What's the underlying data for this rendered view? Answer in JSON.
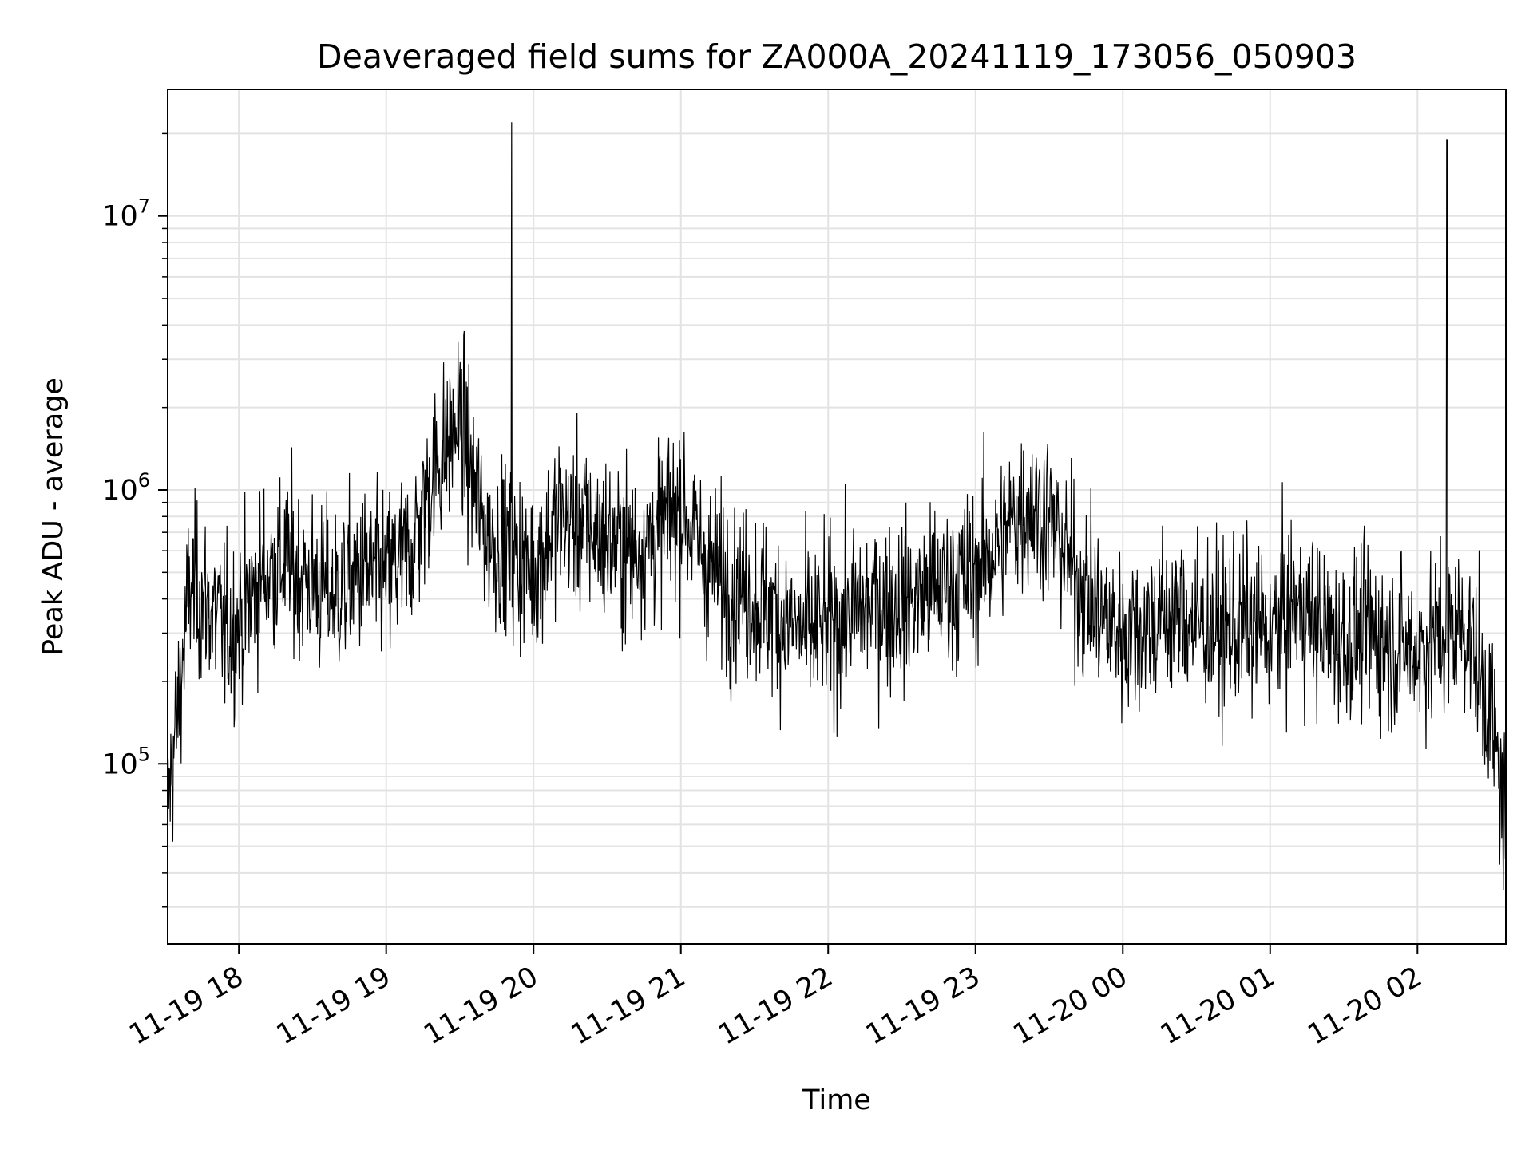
{
  "chart_data": {
    "type": "line",
    "title": "Deaveraged field sums for ZA000A_20241119_173056_050903",
    "xlabel": "Time",
    "ylabel": "Peak ADU - average",
    "yscale": "log",
    "ylim": [
      22000,
      29000000
    ],
    "xlim": [
      "2024-11-19 17:31",
      "2024-11-20 02:36"
    ],
    "x_ticks": [
      {
        "value": "2024-11-19 18:00",
        "label": "11-19 18"
      },
      {
        "value": "2024-11-19 19:00",
        "label": "11-19 19"
      },
      {
        "value": "2024-11-19 20:00",
        "label": "11-19 20"
      },
      {
        "value": "2024-11-19 21:00",
        "label": "11-19 21"
      },
      {
        "value": "2024-11-19 22:00",
        "label": "11-19 22"
      },
      {
        "value": "2024-11-19 23:00",
        "label": "11-19 23"
      },
      {
        "value": "2024-11-20 00:00",
        "label": "11-20 00"
      },
      {
        "value": "2024-11-20 01:00",
        "label": "11-20 01"
      },
      {
        "value": "2024-11-20 02:00",
        "label": "11-20 02"
      }
    ],
    "y_ticks": [
      {
        "value": 100000,
        "base": "10",
        "exp": "5"
      },
      {
        "value": 1000000,
        "base": "10",
        "exp": "6"
      },
      {
        "value": 10000000,
        "base": "10",
        "exp": "7"
      }
    ],
    "grid": true,
    "line_color": "#000000",
    "series": [
      {
        "values_note_free": true,
        "x": [
          "2024-11-19 17:31",
          "2024-11-19 17:35",
          "2024-11-19 17:40",
          "2024-11-19 17:45",
          "2024-11-19 17:50",
          "2024-11-19 17:55",
          "2024-11-19 18:00",
          "2024-11-19 18:10",
          "2024-11-19 18:20",
          "2024-11-19 18:30",
          "2024-11-19 18:40",
          "2024-11-19 18:50",
          "2024-11-19 19:00",
          "2024-11-19 19:10",
          "2024-11-19 19:20",
          "2024-11-19 19:30",
          "2024-11-19 19:40",
          "2024-11-19 19:50",
          "2024-11-19 20:00",
          "2024-11-19 20:10",
          "2024-11-19 20:20",
          "2024-11-19 20:30",
          "2024-11-19 20:40",
          "2024-11-19 20:50",
          "2024-11-19 21:00",
          "2024-11-19 21:10",
          "2024-11-19 21:20",
          "2024-11-19 21:30",
          "2024-11-19 21:40",
          "2024-11-19 21:50",
          "2024-11-19 22:00",
          "2024-11-19 22:10",
          "2024-11-19 22:20",
          "2024-11-19 22:30",
          "2024-11-19 22:40",
          "2024-11-19 22:50",
          "2024-11-19 23:00",
          "2024-11-19 23:10",
          "2024-11-19 23:20",
          "2024-11-19 23:30",
          "2024-11-19 23:40",
          "2024-11-19 23:50",
          "2024-11-20 00:00",
          "2024-11-20 00:10",
          "2024-11-20 00:20",
          "2024-11-20 00:30",
          "2024-11-20 00:40",
          "2024-11-20 00:50",
          "2024-11-20 01:00",
          "2024-11-20 01:10",
          "2024-11-20 01:20",
          "2024-11-20 01:30",
          "2024-11-20 01:40",
          "2024-11-20 01:50",
          "2024-11-20 02:00",
          "2024-11-20 02:10",
          "2024-11-20 02:20",
          "2024-11-20 02:30",
          "2024-11-20 02:36"
        ],
        "y": [
          70000,
          150000,
          450000,
          400000,
          350000,
          300000,
          330000,
          500000,
          550000,
          450000,
          420000,
          500000,
          480000,
          600000,
          1200000,
          1800000,
          700000,
          600000,
          500000,
          800000,
          750000,
          650000,
          600000,
          700000,
          900000,
          550000,
          450000,
          400000,
          350000,
          300000,
          320000,
          350000,
          400000,
          380000,
          420000,
          450000,
          500000,
          650000,
          900000,
          800000,
          500000,
          350000,
          300000,
          320000,
          350000,
          330000,
          300000,
          320000,
          300000,
          380000,
          320000,
          280000,
          300000,
          270000,
          260000,
          300000,
          320000,
          150000,
          60000
        ]
      }
    ],
    "spikes": [
      {
        "x": "2024-11-19 19:51",
        "y": 22000000
      },
      {
        "x": "2024-11-20 02:12",
        "y": 19000000
      }
    ]
  }
}
